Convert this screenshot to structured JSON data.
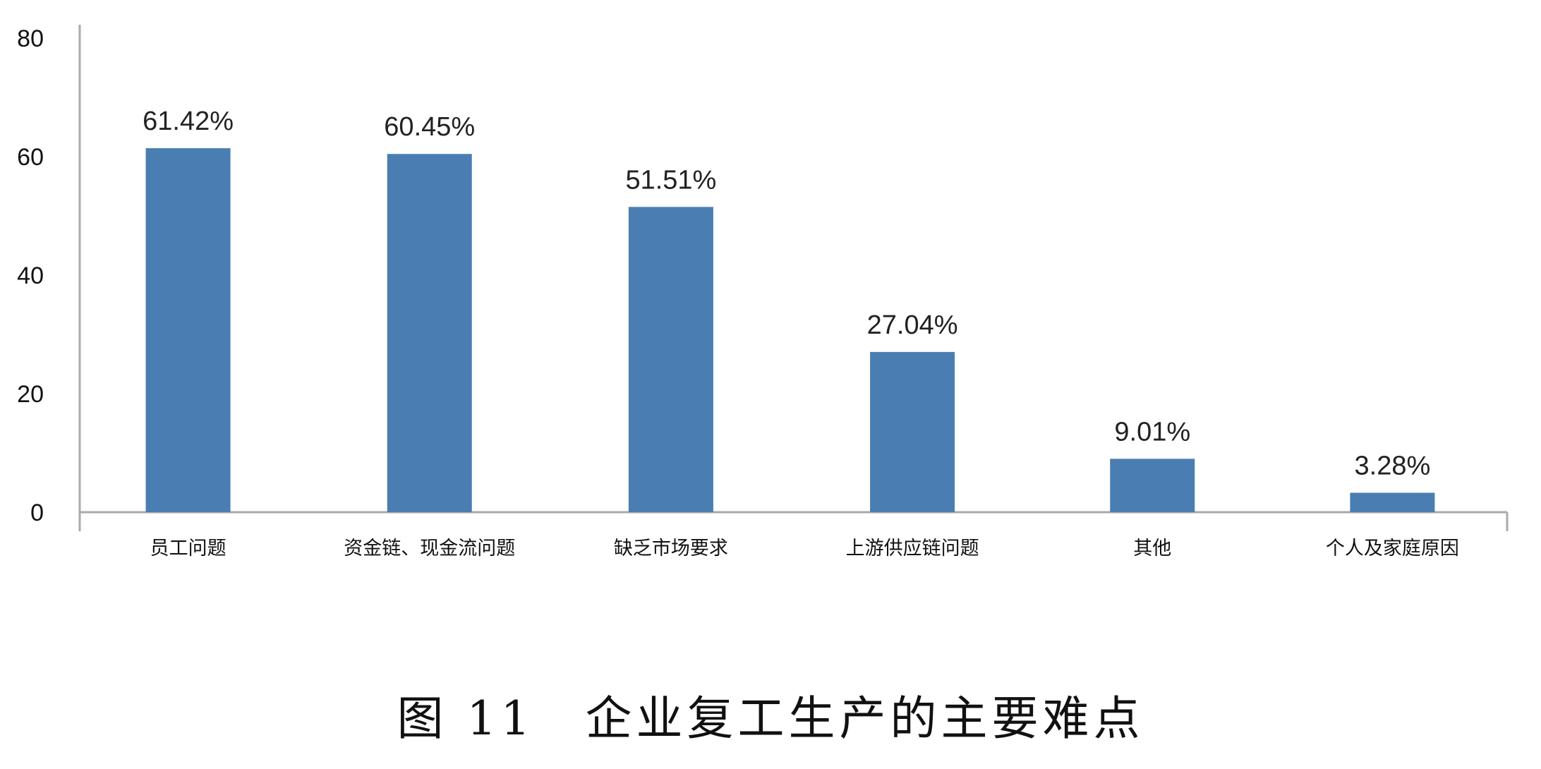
{
  "chart_data": {
    "type": "bar",
    "title": "图 11　企业复工生产的主要难点",
    "categories": [
      "员工问题",
      "资金链、现金流问题",
      "缺乏市场要求",
      "上游供应链问题",
      "其他",
      "个人及家庭原因"
    ],
    "values": [
      61.42,
      60.45,
      51.51,
      27.04,
      9.01,
      3.28
    ],
    "data_labels": [
      "61.42%",
      "60.45%",
      "51.51%",
      "27.04%",
      "9.01%",
      "3.28%"
    ],
    "xlabel": "",
    "ylabel": "",
    "ylim": [
      0,
      80
    ],
    "yticks": [
      "0",
      "20",
      "40",
      "60",
      "80"
    ],
    "grid": false,
    "legend": "none",
    "bar_color": "#4a7eb2"
  }
}
